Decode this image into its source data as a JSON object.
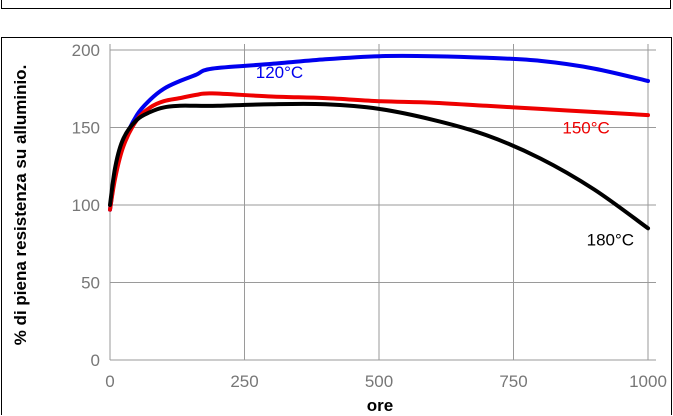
{
  "chart_data": {
    "type": "line",
    "title": "",
    "xlabel": "ore",
    "ylabel": "% di piena resistenza su alluminio.",
    "xlim": [
      0,
      1000
    ],
    "ylim": [
      0,
      200
    ],
    "x_ticks": [
      "0",
      "250",
      "500",
      "750",
      "1000"
    ],
    "y_ticks": [
      "0",
      "50",
      "100",
      "150",
      "200"
    ],
    "grid": true,
    "series": [
      {
        "name": "120°C",
        "color": "#0000ee",
        "label_at": [
          315,
          182
        ],
        "x": [
          0,
          10,
          25,
          50,
          75,
          100,
          130,
          160,
          190,
          300,
          400,
          500,
          600,
          700,
          800,
          900,
          1000
        ],
        "y": [
          97,
          120,
          140,
          158,
          168,
          175,
          180,
          184,
          188,
          191,
          194,
          196,
          196,
          195,
          193,
          188,
          180
        ]
      },
      {
        "name": "150°C",
        "color": "#ee0000",
        "label_at": [
          885,
          146
        ],
        "x": [
          0,
          10,
          25,
          50,
          75,
          100,
          130,
          160,
          190,
          300,
          400,
          500,
          600,
          700,
          800,
          900,
          1000
        ],
        "y": [
          97,
          118,
          138,
          155,
          163,
          167,
          169,
          171,
          172,
          170,
          169,
          167,
          166,
          164,
          162,
          160,
          158
        ]
      },
      {
        "name": "180°C",
        "color": "#000000",
        "label_at": [
          930,
          74
        ],
        "x": [
          0,
          10,
          25,
          50,
          75,
          100,
          130,
          160,
          200,
          300,
          400,
          500,
          600,
          700,
          800,
          900,
          1000
        ],
        "y": [
          100,
          125,
          143,
          155,
          160,
          163,
          164,
          164,
          164,
          165,
          165,
          162,
          155,
          145,
          130,
          110,
          85
        ]
      }
    ]
  }
}
